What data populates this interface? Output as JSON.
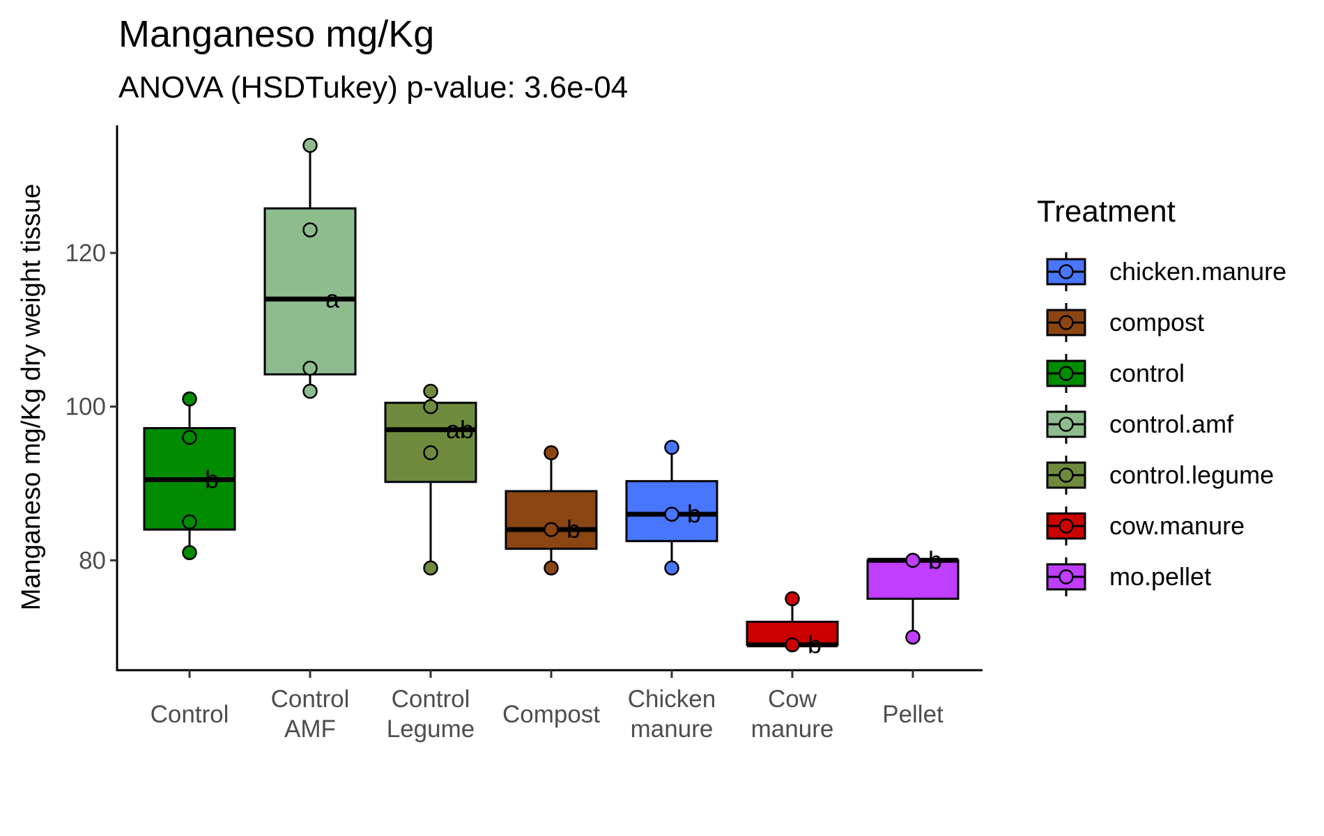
{
  "chart_data": {
    "type": "box",
    "title": "Manganeso mg/Kg",
    "subtitle": "ANOVA (HSDTukey) p-value: 3.6e-04",
    "ylabel": "Manganeso mg/Kg dry weight tissue",
    "xlabel": "",
    "ylim": [
      65.7,
      136.6
    ],
    "yticks": [
      80,
      100,
      120
    ],
    "grid": false,
    "legend": {
      "title": "Treatment",
      "placement": "right",
      "entries": [
        {
          "label": "chicken.manure",
          "color": "#4876FF"
        },
        {
          "label": "compost",
          "color": "#8B4513"
        },
        {
          "label": "control",
          "color": "#008B00"
        },
        {
          "label": "control.amf",
          "color": "#8FBC8F"
        },
        {
          "label": "control.legume",
          "color": "#6E8B3D"
        },
        {
          "label": "cow.manure",
          "color": "#CD0000"
        },
        {
          "label": "mo.pellet",
          "color": "#BF3EFF"
        }
      ]
    },
    "groups": [
      {
        "category": "Control",
        "tick_lines": [
          "Control"
        ],
        "treatment": "control",
        "color": "#008B00",
        "q1": 84,
        "median": 90.5,
        "q3": 97.2,
        "whisker_low": 81,
        "whisker_high": 101,
        "points": [
          101,
          96,
          85,
          81
        ],
        "letter": "b"
      },
      {
        "category": "Control AMF",
        "tick_lines": [
          "Control",
          "AMF"
        ],
        "treatment": "control.amf",
        "color": "#8FBC8F",
        "q1": 104.2,
        "median": 114,
        "q3": 125.8,
        "whisker_low": 102,
        "whisker_high": 134,
        "points": [
          134,
          123,
          105,
          102
        ],
        "letter": "a"
      },
      {
        "category": "Control Legume",
        "tick_lines": [
          "Control",
          "Legume"
        ],
        "treatment": "control.legume",
        "color": "#6E8B3D",
        "q1": 90.2,
        "median": 97,
        "q3": 100.5,
        "whisker_low": 79,
        "whisker_high": 102,
        "points": [
          102,
          100,
          94,
          79
        ],
        "letter": "ab"
      },
      {
        "category": "Compost",
        "tick_lines": [
          "Compost"
        ],
        "treatment": "compost",
        "color": "#8B4513",
        "q1": 81.5,
        "median": 84,
        "q3": 89,
        "whisker_low": 79,
        "whisker_high": 94,
        "points": [
          94,
          84,
          79
        ],
        "letter": "b"
      },
      {
        "category": "Chicken manure",
        "tick_lines": [
          "Chicken",
          "manure"
        ],
        "treatment": "chicken.manure",
        "color": "#4876FF",
        "q1": 82.5,
        "median": 86,
        "q3": 90.3,
        "whisker_low": 79,
        "whisker_high": 94.7,
        "points": [
          94.7,
          86,
          79
        ],
        "letter": "b"
      },
      {
        "category": "Cow manure",
        "tick_lines": [
          "Cow",
          "manure"
        ],
        "treatment": "cow.manure",
        "color": "#CD0000",
        "q1": 69,
        "median": 69,
        "q3": 72,
        "whisker_low": 69,
        "whisker_high": 75,
        "points": [
          75,
          69
        ],
        "letter": "b"
      },
      {
        "category": "Pellet",
        "tick_lines": [
          "Pellet"
        ],
        "treatment": "mo.pellet",
        "color": "#BF3EFF",
        "q1": 75,
        "median": 80,
        "q3": 80,
        "whisker_low": 70,
        "whisker_high": 80,
        "points": [
          80,
          70
        ],
        "letter": "b"
      }
    ]
  }
}
